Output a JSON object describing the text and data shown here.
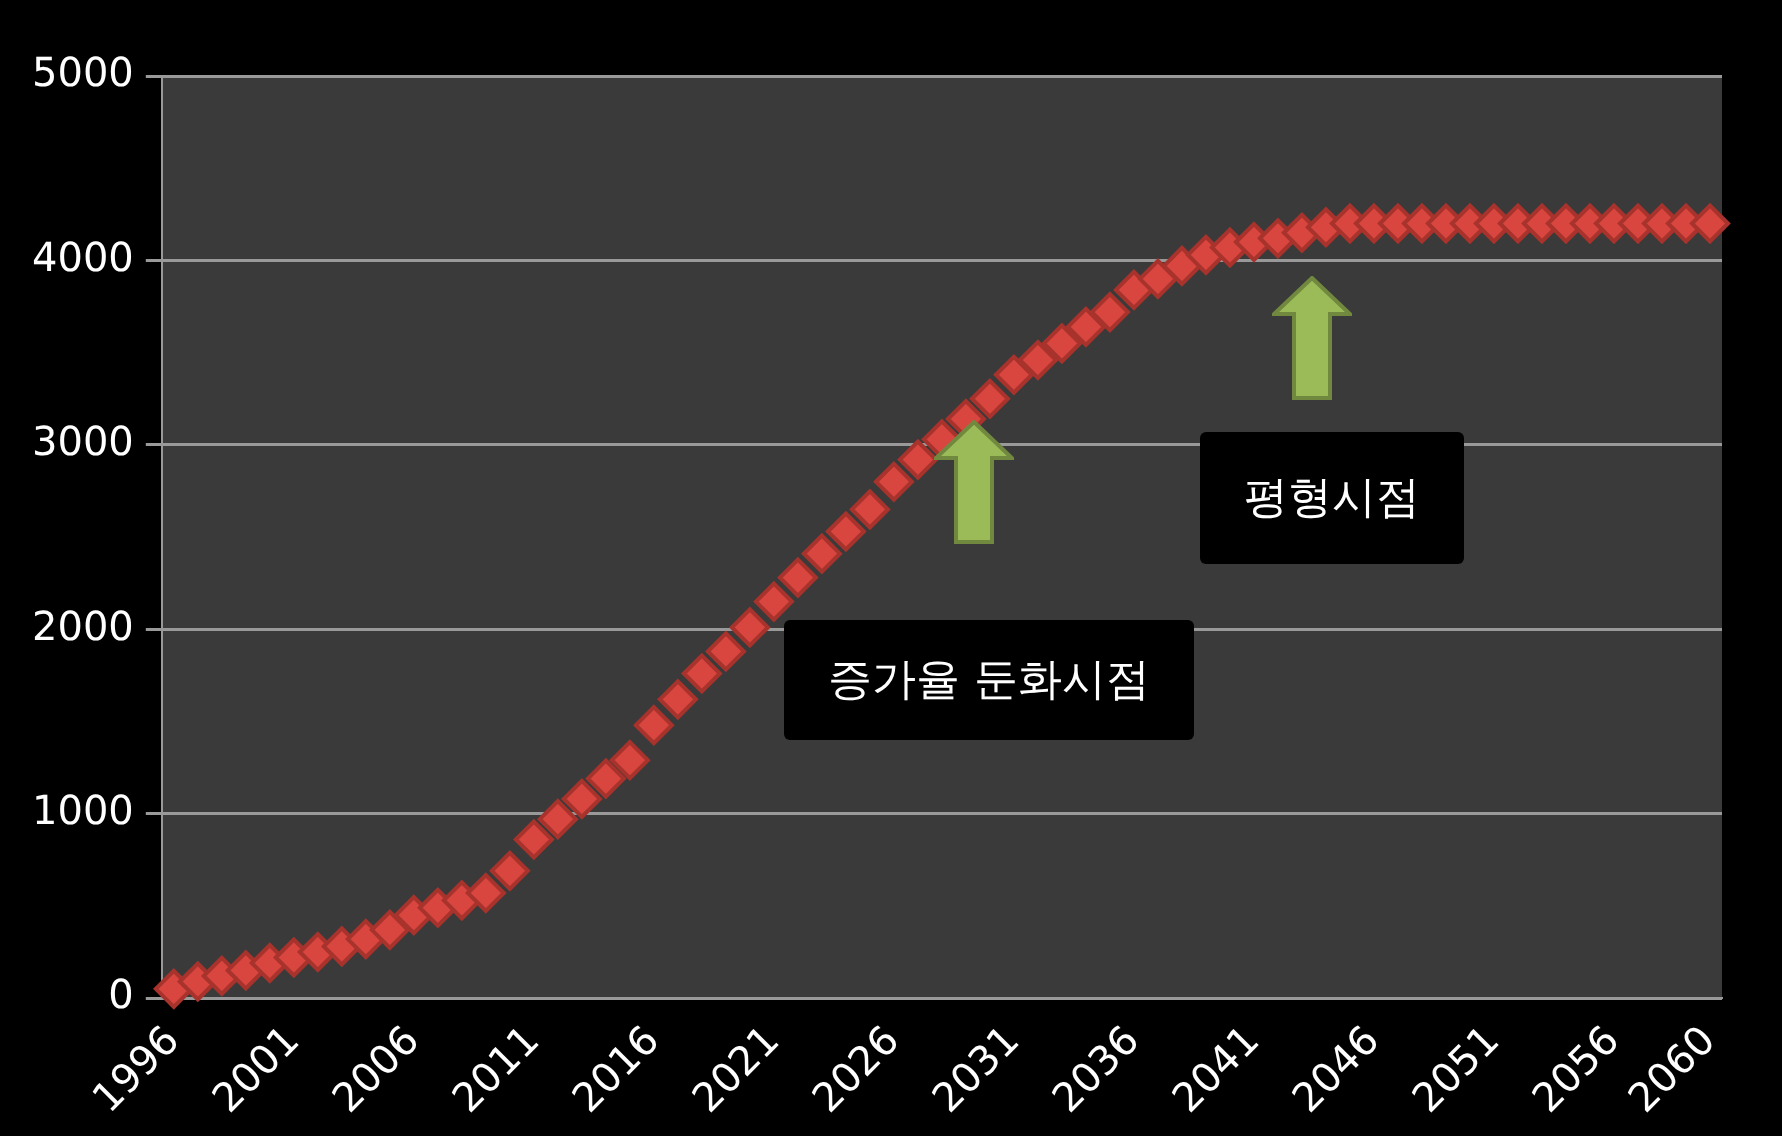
{
  "chart_data": {
    "type": "scatter",
    "categories": [
      "1996",
      null,
      null,
      null,
      null,
      "2001",
      null,
      null,
      null,
      null,
      "2006",
      null,
      null,
      null,
      null,
      "2011",
      null,
      null,
      null,
      null,
      "2016",
      null,
      null,
      null,
      null,
      "2021",
      null,
      null,
      null,
      null,
      "2026",
      null,
      null,
      null,
      null,
      "2031",
      null,
      null,
      null,
      null,
      "2036",
      null,
      null,
      null,
      null,
      "2041",
      null,
      null,
      null,
      null,
      "2046",
      null,
      null,
      null,
      null,
      "2051",
      null,
      null,
      null,
      null,
      "2056",
      null,
      null,
      null,
      "2060"
    ],
    "series": [
      {
        "color": "#d9463f",
        "values": [
          50,
          90,
          120,
          150,
          190,
          220,
          250,
          280,
          320,
          370,
          450,
          490,
          530,
          570,
          690,
          860,
          970,
          1080,
          1190,
          1290,
          1480,
          1620,
          1760,
          1880,
          2010,
          2150,
          2280,
          2410,
          2530,
          2650,
          2800,
          2920,
          3030,
          3140,
          3250,
          3380,
          3460,
          3550,
          3640,
          3720,
          3840,
          3900,
          3970,
          4030,
          4070,
          4100,
          4120,
          4150,
          4180,
          4200,
          4200,
          4200,
          4200,
          4200,
          4200,
          4200,
          4200,
          4200,
          4200,
          4200,
          4200,
          4200,
          4200,
          4200,
          4200
        ]
      }
    ],
    "ylim": [
      0,
      5000
    ],
    "yticks": [
      0,
      1000,
      2000,
      3000,
      4000,
      5000
    ],
    "grid": "y",
    "legend": false,
    "marker": "diamond",
    "annotations": [
      "증가율 둔화시점",
      "평형시점"
    ]
  }
}
